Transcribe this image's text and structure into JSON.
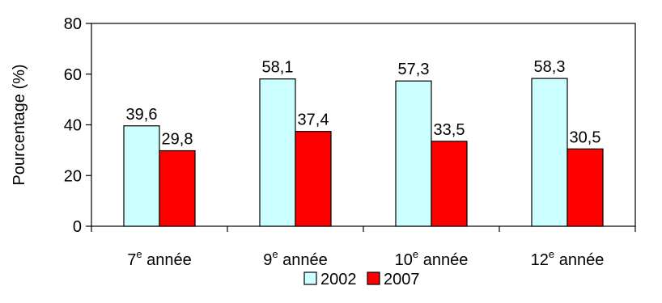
{
  "chart_data": {
    "type": "bar",
    "title": "",
    "xlabel": "",
    "ylabel": "Pourcentage (%)",
    "ylim": [
      0,
      80
    ],
    "yticks": [
      0,
      20,
      40,
      60,
      80
    ],
    "categories": [
      {
        "prefix": "7",
        "sup": "e",
        "suffix": " année"
      },
      {
        "prefix": "9",
        "sup": "e",
        "suffix": " année"
      },
      {
        "prefix": "10",
        "sup": "e",
        "suffix": " année"
      },
      {
        "prefix": "12",
        "sup": "e",
        "suffix": " année"
      }
    ],
    "series": [
      {
        "name": "2002",
        "color": "#ccffff",
        "values": [
          39.6,
          58.1,
          57.3,
          58.3
        ],
        "labels": [
          "39,6",
          "58,1",
          "57,3",
          "58,3"
        ]
      },
      {
        "name": "2007",
        "color": "#ff0000",
        "values": [
          29.8,
          37.4,
          33.5,
          30.5
        ],
        "labels": [
          "29,8",
          "37,4",
          "33,5",
          "30,5"
        ]
      }
    ],
    "grid": false,
    "legend": "bottom"
  }
}
